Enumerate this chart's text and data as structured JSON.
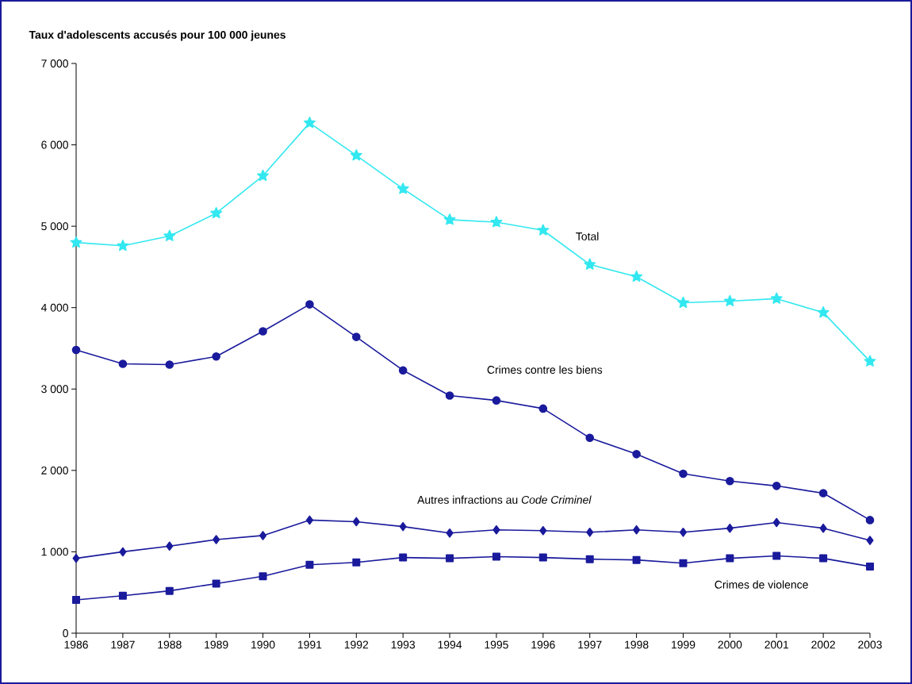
{
  "chart_data": {
    "type": "line",
    "ylabel": "Taux d'adolescents accusés pour 100 000 jeunes",
    "x": [
      1986,
      1987,
      1988,
      1989,
      1990,
      1991,
      1992,
      1993,
      1994,
      1995,
      1996,
      1997,
      1998,
      1999,
      2000,
      2001,
      2002,
      2003
    ],
    "series": [
      {
        "name": "Total",
        "color": "#33e8f0",
        "marker": "star",
        "values": [
          4800,
          4760,
          4880,
          5160,
          5620,
          6270,
          5870,
          5460,
          5080,
          5050,
          4950,
          4530,
          4380,
          4060,
          4080,
          4110,
          3940,
          3340
        ]
      },
      {
        "name": "Crimes contre les biens",
        "color": "#1a1a9c",
        "marker": "circle",
        "values": [
          3480,
          3310,
          3300,
          3400,
          3710,
          4040,
          3640,
          3230,
          2920,
          2860,
          2760,
          2400,
          2200,
          1960,
          1870,
          1810,
          1720,
          1390
        ]
      },
      {
        "name": "Autres infractions au *Code Criminel*",
        "color": "#1a1a9c",
        "marker": "diamond",
        "values": [
          920,
          1000,
          1070,
          1150,
          1200,
          1390,
          1370,
          1310,
          1230,
          1270,
          1260,
          1240,
          1270,
          1240,
          1290,
          1360,
          1290,
          1140
        ]
      },
      {
        "name": "Crimes de violence",
        "color": "#1a1a9c",
        "marker": "square",
        "values": [
          410,
          460,
          520,
          610,
          700,
          840,
          870,
          930,
          920,
          940,
          930,
          910,
          900,
          860,
          920,
          950,
          920,
          820
        ]
      }
    ],
    "xlim": [
      1986,
      2003
    ],
    "xticks": [
      1986,
      1987,
      1988,
      1989,
      1990,
      1991,
      1992,
      1993,
      1994,
      1995,
      1996,
      1997,
      1998,
      1999,
      2000,
      2001,
      2002,
      2003
    ],
    "ylim": [
      0,
      7000
    ],
    "yticks": [
      0,
      {
        "value": 1000,
        "label": "1 000"
      },
      {
        "value": 2000,
        "label": "2 000"
      },
      {
        "value": 3000,
        "label": "3 000"
      },
      {
        "value": 4000,
        "label": "4 000"
      },
      {
        "value": 5000,
        "label": "5 000"
      },
      {
        "value": 6000,
        "label": "6 000"
      },
      {
        "value": 7000,
        "label": "7 000"
      }
    ],
    "grid": false,
    "legend": false,
    "line_style": "solid"
  }
}
